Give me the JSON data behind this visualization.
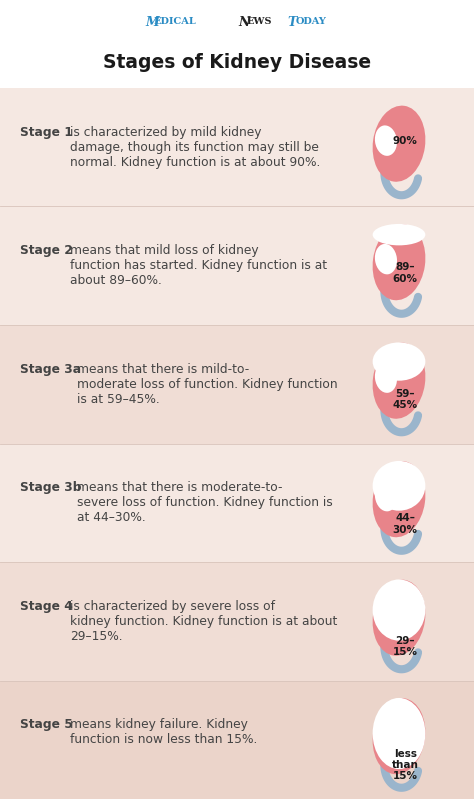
{
  "title": "Stages of Kidney Disease",
  "bg_color": "#ffffff",
  "header_bg": "#ffffff",
  "brand_text": "MedicalNewsToday",
  "brand_medical_color": "#2b8cc4",
  "brand_news_color": "#222222",
  "brand_today_color": "#2b8cc4",
  "title_color": "#1a1a1a",
  "text_color": "#444444",
  "stages": [
    {
      "stage_label": "Stage 1",
      "description_bold": "Stage 1",
      "description": "is characterized by mild kidney\ndamage, though its function may still be\nnormal. Kidney function is at about 90%.",
      "percent_label": "90%",
      "fill_ratio": 1.0,
      "row_bg": "#f5e8e2"
    },
    {
      "stage_label": "Stage 2",
      "description_bold": "Stage 2",
      "description": "means that mild loss of kidney\nfunction has started. Kidney function is at\nabout 89–60%.",
      "percent_label": "89–\n60%",
      "fill_ratio": 0.72,
      "row_bg": "#f5e8e2"
    },
    {
      "stage_label": "Stage 3a",
      "description_bold": "Stage 3a",
      "description": "means that there is mild-to-\nmoderate loss of function. Kidney function\nis at 59–45%.",
      "percent_label": "59–\n45%",
      "fill_ratio": 0.5,
      "row_bg": "#f0ddd5"
    },
    {
      "stage_label": "Stage 3b",
      "description_bold": "Stage 3b",
      "description": "means that there is moderate-to-\nsevere loss of function. Kidney function is\nat 44–30%.",
      "percent_label": "44–\n30%",
      "fill_ratio": 0.35,
      "row_bg": "#f5e8e2"
    },
    {
      "stage_label": "Stage 4",
      "description_bold": "Stage 4",
      "description": "is characterized by severe loss of\nkidney function. Kidney function is at about\n29–15%.",
      "percent_label": "29–\n15%",
      "fill_ratio": 0.2,
      "row_bg": "#f0ddd5"
    },
    {
      "stage_label": "Stage 5",
      "description_bold": "Stage 5",
      "description": "means kidney failure. Kidney\nfunction is now less than 15%.",
      "percent_label": "less\nthan\n15%",
      "fill_ratio": 0.07,
      "row_bg": "#ebd4ca"
    }
  ],
  "kidney_pink": "#e8848a",
  "kidney_white": "#ffffff",
  "ureter_blue": "#9ab5cc",
  "pct_text_color": "#1a1a1a",
  "divider_color": "#d9c4bb"
}
